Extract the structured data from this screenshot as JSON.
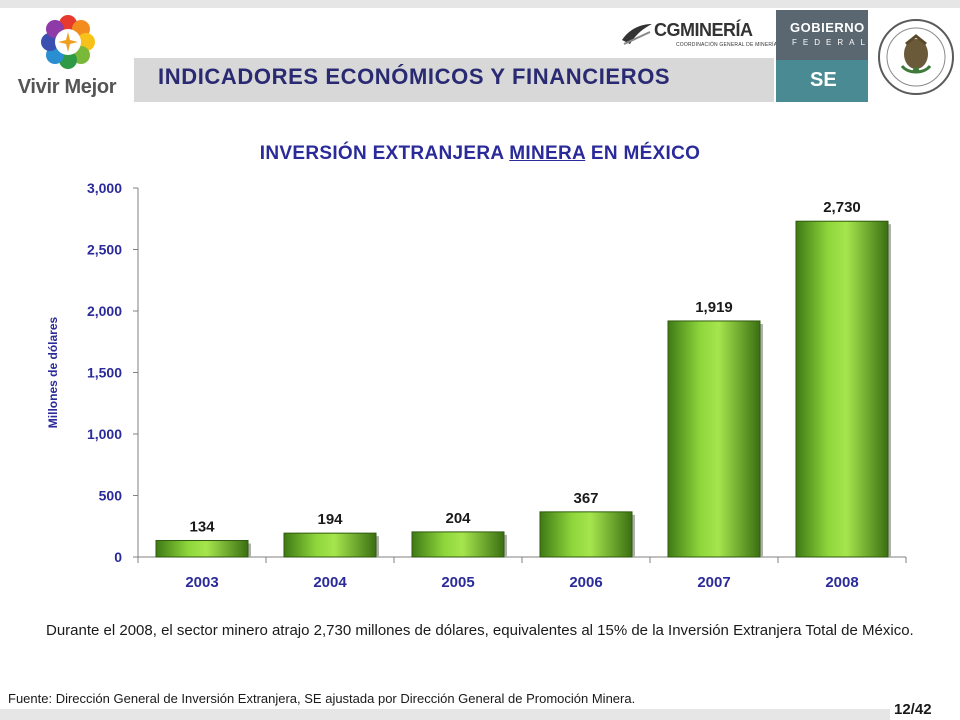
{
  "header": {
    "vivir_mejor": "Vivir Mejor",
    "banner_title": "INDICADORES ECONÓMICOS Y FINANCIEROS",
    "cg_logo_text": "CGMINERÍA",
    "cg_logo_sub": "COORDINACIÓN GENERAL DE MINERÍA",
    "gobierno_line1": "GOBIERNO",
    "gobierno_line2": "FEDERAL",
    "se_label": "SE"
  },
  "chart_title": {
    "part1": "INVERSIÓN EXTRANJERA ",
    "part2": "MINERA",
    "part3": " EN MÉXICO"
  },
  "chart_data": {
    "type": "bar",
    "title": "INVERSIÓN EXTRANJERA MINERA EN MÉXICO",
    "ylabel": "Millones de dólares",
    "xlabel": "",
    "categories": [
      "2003",
      "2004",
      "2005",
      "2006",
      "2007",
      "2008"
    ],
    "values": [
      134,
      194,
      204,
      367,
      1919,
      2730
    ],
    "data_labels": [
      "134",
      "194",
      "204",
      "367",
      "1,919",
      "2,730"
    ],
    "ylim": [
      0,
      3000
    ],
    "yticks": [
      0,
      500,
      1000,
      1500,
      2000,
      2500,
      3000
    ],
    "ytick_labels": [
      "0",
      "500",
      "1,000",
      "1,500",
      "2,000",
      "2,500",
      "3,000"
    ],
    "grid": false,
    "legend": "none",
    "bar_color": "#7cbd2e"
  },
  "description": "Durante el 2008, el sector minero atrajo 2,730 millones de dólares, equivalentes al 15% de la Inversión Extranjera Total de México.",
  "source": "Fuente: Dirección General de Inversión Extranjera, SE ajustada por Dirección General de Promoción Minera.",
  "page_number": "12/42",
  "colors": {
    "title_blue": "#2a2a9a",
    "banner_grey": "#d8d8d8",
    "gobierno_grey": "#5b6770",
    "se_teal": "#4a8a93"
  }
}
